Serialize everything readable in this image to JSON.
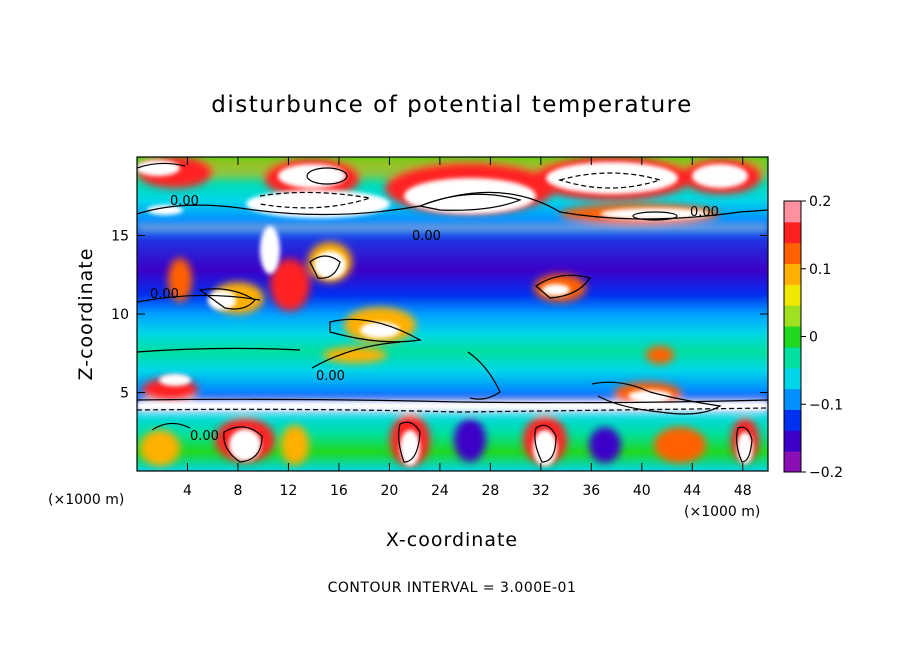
{
  "chart_data": {
    "type": "heatmap",
    "title": "disturbunce of potential temperature",
    "xlabel": "X-coordinate",
    "ylabel": "Z-coordinate",
    "x_unit": "(×1000 m)",
    "x_unit_right": "(×1000 m)",
    "xlim": [
      0,
      50
    ],
    "ylim": [
      0,
      20
    ],
    "x_ticks": [
      4,
      8,
      12,
      16,
      20,
      24,
      28,
      32,
      36,
      40,
      44,
      48
    ],
    "y_ticks": [
      5,
      10,
      15
    ],
    "colorbar": {
      "range": [
        -0.2,
        0.2
      ],
      "tick_values": [
        0.2,
        0.1,
        0,
        -0.1,
        -0.2
      ],
      "tick_labels": [
        "0.2",
        "0.1",
        "0",
        "−0.1",
        "−0.2"
      ],
      "colors": [
        "#8a0fb4",
        "#3c00c8",
        "#0030f0",
        "#0090ff",
        "#00d6e8",
        "#00e0a0",
        "#20d820",
        "#a0e020",
        "#f0e800",
        "#ffb000",
        "#ff6000",
        "#ff2020",
        "#ff90a0"
      ]
    },
    "contour_labels": [
      "0.00",
      "0.00",
      "0.00",
      "0.00",
      "0.00",
      "0.00"
    ],
    "contour_interval_text": "CONTOUR INTERVAL = 3.000E-01"
  }
}
